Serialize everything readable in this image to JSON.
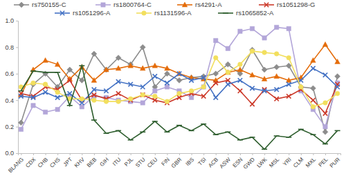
{
  "chart_data": {
    "type": "line",
    "categories": [
      "BLANG",
      "CDX",
      "CHB",
      "CHS",
      "JPT",
      "KHV",
      "BEB",
      "GIH",
      "ITU",
      "PJL",
      "STU",
      "CEU",
      "FIN",
      "GBR",
      "IBS",
      "TSI",
      "ACB",
      "ASW",
      "ESN",
      "GWD",
      "LWK",
      "MSL",
      "YRI",
      "CLM",
      "MXL",
      "PEL",
      "PUR"
    ],
    "series": [
      {
        "name": "rs750155-C",
        "color": "#8c8c8c",
        "marker": "diamond",
        "values": [
          0.23,
          0.52,
          0.6,
          0.5,
          0.63,
          0.55,
          0.75,
          0.63,
          0.72,
          0.67,
          0.8,
          0.5,
          0.6,
          0.55,
          0.57,
          0.58,
          0.6,
          0.67,
          0.6,
          0.78,
          0.63,
          0.65,
          0.66,
          0.5,
          0.49,
          0.16,
          0.58
        ]
      },
      {
        "name": "rs1800764-C",
        "color": "#b3a6d9",
        "marker": "square",
        "values": [
          0.18,
          0.36,
          0.31,
          0.33,
          0.43,
          0.35,
          0.43,
          0.42,
          0.4,
          0.39,
          0.38,
          0.47,
          0.5,
          0.47,
          0.42,
          0.5,
          0.85,
          0.79,
          0.92,
          0.94,
          0.87,
          0.95,
          0.94,
          0.47,
          0.33,
          0.2,
          0.53
        ]
      },
      {
        "name": "rs4291-A",
        "color": "#e46c0a",
        "marker": "triangle",
        "values": [
          0.44,
          0.63,
          0.7,
          0.67,
          0.56,
          0.65,
          0.55,
          0.63,
          0.64,
          0.66,
          0.64,
          0.66,
          0.64,
          0.6,
          0.57,
          0.56,
          0.55,
          0.61,
          0.63,
          0.59,
          0.56,
          0.58,
          0.55,
          0.57,
          0.7,
          0.82,
          0.69
        ]
      },
      {
        "name": "rs1051298-G",
        "color": "#cc3a2a",
        "marker": "x",
        "values": [
          0.45,
          0.43,
          0.5,
          0.48,
          0.55,
          0.4,
          0.44,
          0.41,
          0.45,
          0.4,
          0.44,
          0.4,
          0.38,
          0.42,
          0.45,
          0.43,
          0.53,
          0.55,
          0.47,
          0.37,
          0.48,
          0.41,
          0.43,
          0.48,
          0.4,
          0.3,
          0.52
        ]
      },
      {
        "name": "rs1051296-A",
        "color": "#4472c4",
        "marker": "x",
        "values": [
          0.43,
          0.42,
          0.46,
          0.42,
          0.45,
          0.38,
          0.48,
          0.47,
          0.54,
          0.52,
          0.5,
          0.58,
          0.53,
          0.6,
          0.55,
          0.57,
          0.42,
          0.52,
          0.55,
          0.49,
          0.47,
          0.48,
          0.52,
          0.55,
          0.64,
          0.59,
          0.5
        ]
      },
      {
        "name": "rs1131596-A",
        "color": "#f2df5e",
        "marker": "circle",
        "values": [
          0.5,
          0.53,
          0.52,
          0.46,
          0.41,
          0.41,
          0.4,
          0.39,
          0.39,
          0.41,
          0.44,
          0.43,
          0.39,
          0.45,
          0.47,
          0.5,
          0.72,
          0.61,
          0.67,
          0.77,
          0.76,
          0.75,
          0.72,
          0.5,
          0.35,
          0.38,
          0.45
        ]
      },
      {
        "name": "rs1065852-A",
        "color": "#2e5e2e",
        "marker": "dash",
        "values": [
          0.47,
          0.62,
          0.61,
          0.61,
          0.36,
          0.66,
          0.25,
          0.15,
          0.17,
          0.1,
          0.16,
          0.24,
          0.16,
          0.21,
          0.17,
          0.22,
          0.14,
          0.16,
          0.1,
          0.12,
          0.03,
          0.13,
          0.12,
          0.18,
          0.14,
          0.07,
          0.17
        ]
      }
    ],
    "ylim": [
      0,
      1
    ],
    "yticks": [
      {
        "value": 0,
        "label": "0.0"
      },
      0.2,
      0.4,
      0.6,
      0.8,
      {
        "value": 1,
        "label": "1.0"
      }
    ],
    "grid": false,
    "legend": "top"
  }
}
